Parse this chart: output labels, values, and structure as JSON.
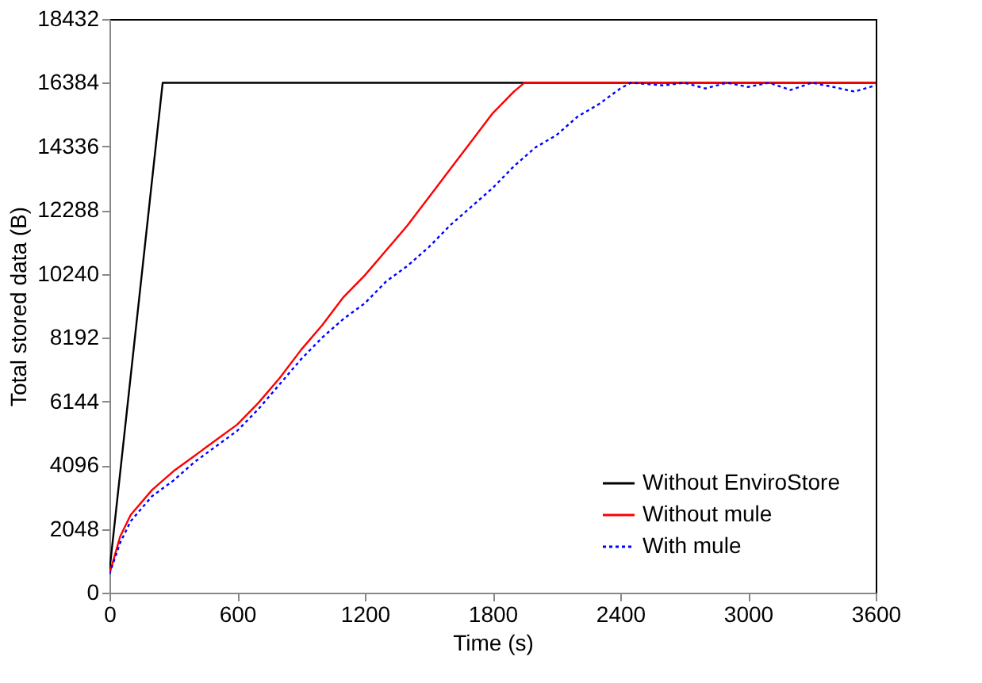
{
  "chart_data": {
    "type": "line",
    "xlabel": "Time (s)",
    "ylabel": "Total stored data (B)",
    "xlim": [
      0,
      3600
    ],
    "xticks": [
      0,
      600,
      1200,
      1800,
      2400,
      3000,
      3600
    ],
    "ylim": [
      0,
      18432
    ],
    "yticks": [
      0,
      2048,
      4096,
      6144,
      8192,
      10240,
      12288,
      14336,
      16384,
      18432
    ],
    "grid": false,
    "legend": "bottom right",
    "marker": "none",
    "series": [
      {
        "name": "Without EnviroStore",
        "color": "#000000",
        "line_style": "solid",
        "x": [
          0,
          250,
          3600
        ],
        "values": [
          700,
          16384,
          16384
        ]
      },
      {
        "name": "Without mule",
        "color": "#ff0000",
        "line_style": "solid",
        "x": [
          0,
          50,
          100,
          200,
          300,
          400,
          500,
          600,
          700,
          800,
          900,
          1000,
          1100,
          1200,
          1300,
          1400,
          1500,
          1600,
          1700,
          1800,
          1900,
          1950,
          3600
        ],
        "values": [
          600,
          1800,
          2500,
          3300,
          3900,
          4400,
          4900,
          5400,
          6100,
          6900,
          7800,
          8600,
          9500,
          10200,
          11000,
          11800,
          12700,
          13600,
          14500,
          15400,
          16100,
          16384,
          16384
        ]
      },
      {
        "name": "With mule",
        "color": "#0000ff",
        "line_style": "dotted",
        "x": [
          0,
          50,
          100,
          200,
          300,
          400,
          500,
          600,
          700,
          800,
          900,
          1000,
          1100,
          1200,
          1300,
          1400,
          1500,
          1600,
          1700,
          1800,
          1900,
          2000,
          2100,
          2200,
          2300,
          2400,
          2450,
          2600,
          2700,
          2800,
          2900,
          3000,
          3100,
          3200,
          3300,
          3400,
          3500,
          3600
        ],
        "values": [
          600,
          1600,
          2300,
          3100,
          3600,
          4200,
          4700,
          5200,
          5900,
          6700,
          7500,
          8200,
          8800,
          9300,
          10000,
          10500,
          11100,
          11800,
          12400,
          13000,
          13700,
          14300,
          14700,
          15300,
          15700,
          16200,
          16384,
          16300,
          16384,
          16200,
          16384,
          16250,
          16384,
          16150,
          16384,
          16250,
          16100,
          16300
        ]
      }
    ]
  }
}
